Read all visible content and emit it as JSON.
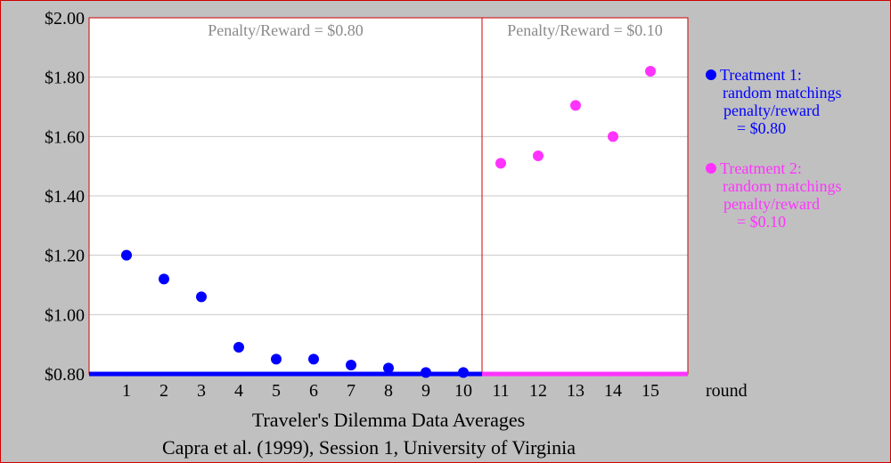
{
  "chart_data": {
    "type": "scatter",
    "title": "Traveler's Dilemma Data Averages",
    "subtitle": "Capra et al. (1999), Session 1, University of Virginia",
    "xlabel": "round",
    "ylabel": "",
    "xlim": [
      0,
      16
    ],
    "ylim": [
      0.8,
      2.0
    ],
    "x_ticks": [
      "1",
      "2",
      "3",
      "4",
      "5",
      "6",
      "7",
      "8",
      "9",
      "10",
      "11",
      "12",
      "13",
      "14",
      "15"
    ],
    "y_ticks": [
      "$0.80",
      "$1.00",
      "$1.20",
      "$1.40",
      "$1.60",
      "$1.80",
      "$2.00"
    ],
    "y_tick_values": [
      0.8,
      1.0,
      1.2,
      1.4,
      1.6,
      1.8,
      2.0
    ],
    "grid": "horizontal",
    "legend_position": "right",
    "panels": [
      {
        "label": "Penalty/Reward = $0.80",
        "x_range": [
          0,
          10.5
        ]
      },
      {
        "label": "Penalty/Reward = $0.10",
        "x_range": [
          10.5,
          16
        ]
      }
    ],
    "series": [
      {
        "color": "#0000ff",
        "legend_lines": [
          "Treatment 1:",
          "random matchings",
          "penalty/reward",
          "= $0.80"
        ],
        "x": [
          1,
          2,
          3,
          4,
          5,
          6,
          7,
          8,
          9,
          10
        ],
        "y": [
          1.2,
          1.12,
          1.06,
          0.89,
          0.85,
          0.85,
          0.83,
          0.82,
          0.805,
          0.805
        ]
      },
      {
        "color": "#ff33ff",
        "legend_lines": [
          "Treatment 2:",
          "random matchings",
          "penalty/reward",
          "= $0.10"
        ],
        "x": [
          11,
          12,
          13,
          14,
          15
        ],
        "y": [
          1.51,
          1.535,
          1.705,
          1.6,
          1.82
        ]
      }
    ]
  },
  "colors": {
    "background": "#c0c0c0",
    "plot_background": "#ffffff",
    "frame": "#d00000",
    "grid": "#c8c8c8",
    "panel_label": "#8a8a8a"
  }
}
